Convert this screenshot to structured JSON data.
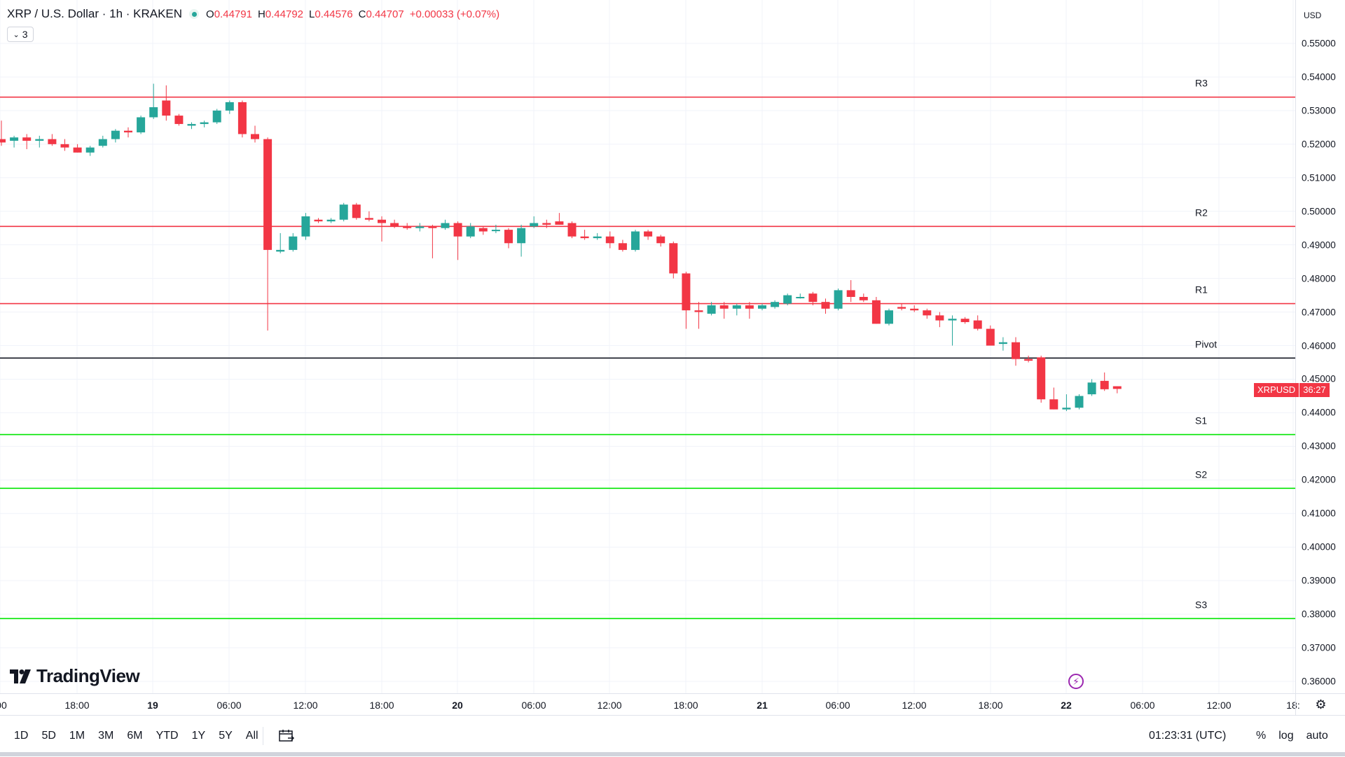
{
  "header": {
    "symbol": "XRP / U.S. Dollar · 1h · KRAKEN",
    "ohlc": [
      {
        "k": "O",
        "v": "0.44791"
      },
      {
        "k": "H",
        "v": "0.44792"
      },
      {
        "k": "L",
        "v": "0.44576"
      },
      {
        "k": "C",
        "v": "0.44707"
      }
    ],
    "change": "+0.00033 (+0.07%)",
    "indicator_count": "3"
  },
  "yaxis": {
    "currency": "USD",
    "labels": [
      "0.55000",
      "0.54000",
      "0.53000",
      "0.52000",
      "0.51000",
      "0.50000",
      "0.49000",
      "0.48000",
      "0.47000",
      "0.46000",
      "0.45000",
      "0.44000",
      "0.43000",
      "0.42000",
      "0.41000",
      "0.40000",
      "0.39000",
      "0.38000",
      "0.37000",
      "0.36000"
    ]
  },
  "price_tag": {
    "symbol": "XRPUSD",
    "countdown": "36:27"
  },
  "xaxis": {
    "labels": [
      ":00",
      "18:00",
      "19",
      "06:00",
      "12:00",
      "18:00",
      "20",
      "06:00",
      "12:00",
      "18:00",
      "21",
      "06:00",
      "12:00",
      "18:00",
      "22",
      "06:00",
      "12:00",
      "18:"
    ],
    "bold": [
      "19",
      "20",
      "21",
      "22"
    ]
  },
  "logo": "TradingView",
  "bottom": {
    "ranges": [
      "1D",
      "5D",
      "1M",
      "3M",
      "6M",
      "YTD",
      "1Y",
      "5Y",
      "All"
    ],
    "clock": "01:23:31 (UTC)",
    "options": [
      "%",
      "log",
      "auto"
    ]
  },
  "colors": {
    "up": "#26a69a",
    "down": "#f23645",
    "resistance": "#f23645",
    "support": "#00e600",
    "pivot": "#131722",
    "grid": "#f0f3fa"
  },
  "chart_data": {
    "type": "candlestick",
    "title": "XRP / U.S. Dollar · 1h · KRAKEN",
    "ylim": [
      0.355,
      0.559
    ],
    "interval": "1h",
    "levels": [
      {
        "name": "R3",
        "value": 0.534,
        "kind": "resistance"
      },
      {
        "name": "R2",
        "value": 0.4955,
        "kind": "resistance"
      },
      {
        "name": "R1",
        "value": 0.4725,
        "kind": "resistance"
      },
      {
        "name": "Pivot",
        "value": 0.4563,
        "kind": "pivot"
      },
      {
        "name": "S1",
        "value": 0.4335,
        "kind": "support"
      },
      {
        "name": "S2",
        "value": 0.4175,
        "kind": "support"
      },
      {
        "name": "S3",
        "value": 0.3787,
        "kind": "support"
      }
    ],
    "candles": [
      [
        0.5215,
        0.527,
        0.5195,
        0.5205
      ],
      [
        0.521,
        0.5225,
        0.519,
        0.522
      ],
      [
        0.522,
        0.523,
        0.5185,
        0.521
      ],
      [
        0.521,
        0.5225,
        0.519,
        0.5215
      ],
      [
        0.5215,
        0.523,
        0.5195,
        0.52
      ],
      [
        0.52,
        0.5215,
        0.518,
        0.519
      ],
      [
        0.519,
        0.52,
        0.5175,
        0.5175
      ],
      [
        0.5175,
        0.5195,
        0.5165,
        0.519
      ],
      [
        0.5195,
        0.5225,
        0.519,
        0.5215
      ],
      [
        0.5215,
        0.5245,
        0.5205,
        0.524
      ],
      [
        0.524,
        0.525,
        0.522,
        0.5235
      ],
      [
        0.5235,
        0.5285,
        0.523,
        0.528
      ],
      [
        0.528,
        0.538,
        0.5275,
        0.531
      ],
      [
        0.533,
        0.5375,
        0.527,
        0.5285
      ],
      [
        0.5285,
        0.529,
        0.5255,
        0.526
      ],
      [
        0.5255,
        0.5265,
        0.5245,
        0.526
      ],
      [
        0.526,
        0.527,
        0.525,
        0.5265
      ],
      [
        0.5265,
        0.5305,
        0.526,
        0.53
      ],
      [
        0.53,
        0.533,
        0.529,
        0.5325
      ],
      [
        0.5325,
        0.533,
        0.522,
        0.523
      ],
      [
        0.523,
        0.5255,
        0.5205,
        0.5215
      ],
      [
        0.5215,
        0.522,
        0.4645,
        0.4885
      ],
      [
        0.488,
        0.4935,
        0.4875,
        0.4885
      ],
      [
        0.4885,
        0.4935,
        0.488,
        0.4925
      ],
      [
        0.4925,
        0.4995,
        0.4915,
        0.4985
      ],
      [
        0.4975,
        0.498,
        0.4965,
        0.497
      ],
      [
        0.497,
        0.498,
        0.4965,
        0.4975
      ],
      [
        0.4975,
        0.5025,
        0.497,
        0.502
      ],
      [
        0.502,
        0.5025,
        0.4975,
        0.498
      ],
      [
        0.498,
        0.5,
        0.497,
        0.4975
      ],
      [
        0.4975,
        0.4985,
        0.491,
        0.4965
      ],
      [
        0.4965,
        0.4975,
        0.495,
        0.4955
      ],
      [
        0.4955,
        0.4965,
        0.4945,
        0.495
      ],
      [
        0.495,
        0.4965,
        0.494,
        0.4955
      ],
      [
        0.4955,
        0.496,
        0.486,
        0.495
      ],
      [
        0.495,
        0.4975,
        0.4945,
        0.4965
      ],
      [
        0.4965,
        0.497,
        0.4855,
        0.4925
      ],
      [
        0.4925,
        0.4965,
        0.492,
        0.4955
      ],
      [
        0.495,
        0.4955,
        0.493,
        0.494
      ],
      [
        0.4945,
        0.496,
        0.4935,
        0.4945
      ],
      [
        0.4945,
        0.495,
        0.489,
        0.4905
      ],
      [
        0.4905,
        0.496,
        0.4865,
        0.495
      ],
      [
        0.4955,
        0.4985,
        0.495,
        0.4965
      ],
      [
        0.4965,
        0.4975,
        0.495,
        0.496
      ],
      [
        0.497,
        0.4995,
        0.496,
        0.496
      ],
      [
        0.4965,
        0.497,
        0.492,
        0.4925
      ],
      [
        0.4925,
        0.4945,
        0.4915,
        0.492
      ],
      [
        0.492,
        0.4935,
        0.4915,
        0.4925
      ],
      [
        0.4925,
        0.494,
        0.489,
        0.4905
      ],
      [
        0.4905,
        0.4915,
        0.488,
        0.4885
      ],
      [
        0.4885,
        0.4945,
        0.488,
        0.494
      ],
      [
        0.494,
        0.4945,
        0.4915,
        0.4925
      ],
      [
        0.4925,
        0.493,
        0.4895,
        0.4905
      ],
      [
        0.4905,
        0.491,
        0.48,
        0.4815
      ],
      [
        0.4815,
        0.482,
        0.465,
        0.4705
      ],
      [
        0.4705,
        0.473,
        0.465,
        0.47
      ],
      [
        0.4695,
        0.473,
        0.469,
        0.472
      ],
      [
        0.472,
        0.473,
        0.468,
        0.471
      ],
      [
        0.471,
        0.4725,
        0.469,
        0.472
      ],
      [
        0.472,
        0.473,
        0.468,
        0.471
      ],
      [
        0.471,
        0.4725,
        0.4705,
        0.472
      ],
      [
        0.4715,
        0.4735,
        0.471,
        0.473
      ],
      [
        0.4725,
        0.4755,
        0.472,
        0.475
      ],
      [
        0.4745,
        0.4755,
        0.474,
        0.4745
      ],
      [
        0.4755,
        0.476,
        0.472,
        0.473
      ],
      [
        0.473,
        0.474,
        0.4695,
        0.471
      ],
      [
        0.471,
        0.477,
        0.4705,
        0.4765
      ],
      [
        0.4765,
        0.4795,
        0.473,
        0.4745
      ],
      [
        0.4745,
        0.4755,
        0.473,
        0.4735
      ],
      [
        0.4735,
        0.4745,
        0.4665,
        0.4665
      ],
      [
        0.4665,
        0.471,
        0.466,
        0.4705
      ],
      [
        0.4715,
        0.4725,
        0.4705,
        0.471
      ],
      [
        0.471,
        0.472,
        0.47,
        0.4705
      ],
      [
        0.4705,
        0.471,
        0.468,
        0.469
      ],
      [
        0.469,
        0.47,
        0.4655,
        0.4675
      ],
      [
        0.4675,
        0.469,
        0.46,
        0.468
      ],
      [
        0.468,
        0.4685,
        0.4665,
        0.467
      ],
      [
        0.4675,
        0.469,
        0.4645,
        0.465
      ],
      [
        0.465,
        0.466,
        0.46,
        0.46
      ],
      [
        0.4605,
        0.4625,
        0.4585,
        0.461
      ],
      [
        0.461,
        0.4625,
        0.454,
        0.456
      ],
      [
        0.456,
        0.457,
        0.455,
        0.4555
      ],
      [
        0.4565,
        0.457,
        0.443,
        0.444
      ],
      [
        0.444,
        0.4475,
        0.441,
        0.441
      ],
      [
        0.441,
        0.4455,
        0.4405,
        0.4415
      ],
      [
        0.4415,
        0.4455,
        0.441,
        0.445
      ],
      [
        0.4455,
        0.45,
        0.445,
        0.449
      ],
      [
        0.4495,
        0.452,
        0.4465,
        0.447
      ],
      [
        0.4479,
        0.4479,
        0.4458,
        0.4471
      ]
    ]
  }
}
